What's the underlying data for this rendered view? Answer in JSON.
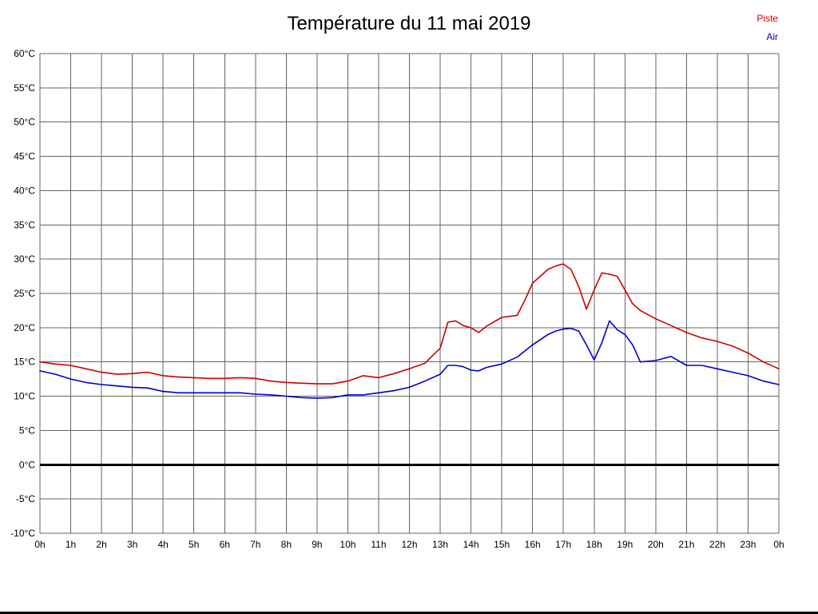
{
  "title": "Température du 11 mai 2019",
  "legend": {
    "piste": "Piste",
    "air": "Air"
  },
  "colors": {
    "piste": "#cc0000",
    "air": "#0000cc",
    "grid": "#666666",
    "zero_line": "#000000",
    "text": "#000000",
    "background": "#ffffff"
  },
  "chart_data": {
    "type": "line",
    "title": "Température du 11 mai 2019",
    "xlabel": "",
    "ylabel": "",
    "xlim": [
      0,
      24
    ],
    "ylim": [
      -10,
      60
    ],
    "y_tick_step": 5,
    "grid": true,
    "legend_position": "top-right",
    "x_tick_labels": [
      "0h",
      "1h",
      "2h",
      "3h",
      "4h",
      "5h",
      "6h",
      "7h",
      "8h",
      "9h",
      "10h",
      "11h",
      "12h",
      "13h",
      "14h",
      "15h",
      "16h",
      "17h",
      "18h",
      "19h",
      "20h",
      "21h",
      "22h",
      "23h",
      "0h"
    ],
    "y_tick_labels": [
      "60°C",
      "55°C",
      "50°C",
      "45°C",
      "40°C",
      "35°C",
      "30°C",
      "25°C",
      "20°C",
      "15°C",
      "10°C",
      "5°C",
      "0°C",
      "-5°C",
      "-10°C"
    ],
    "series": [
      {
        "name": "Piste",
        "color": "#cc0000",
        "x": [
          0,
          0.5,
          1,
          1.5,
          2,
          2.5,
          3,
          3.5,
          4,
          4.5,
          5,
          5.5,
          6,
          6.5,
          7,
          7.5,
          8,
          8.5,
          9,
          9.5,
          10,
          10.5,
          11,
          11.5,
          12,
          12.5,
          13,
          13.25,
          13.5,
          13.75,
          14,
          14.25,
          14.5,
          15,
          15.5,
          15.75,
          16,
          16.25,
          16.5,
          16.75,
          17,
          17.25,
          17.5,
          17.75,
          18,
          18.25,
          18.5,
          18.75,
          19,
          19.25,
          19.5,
          20,
          20.5,
          21,
          21.5,
          22,
          22.5,
          23,
          23.5,
          24
        ],
        "values": [
          15,
          14.7,
          14.5,
          14,
          13.5,
          13.2,
          13.3,
          13.5,
          13,
          12.8,
          12.7,
          12.6,
          12.6,
          12.7,
          12.6,
          12.2,
          12,
          11.9,
          11.8,
          11.8,
          12.2,
          13,
          12.7,
          13.3,
          14,
          14.8,
          17,
          20.8,
          21,
          20.3,
          20,
          19.3,
          20.2,
          21.5,
          21.8,
          24,
          26.5,
          27.5,
          28.5,
          29,
          29.3,
          28.5,
          26,
          22.7,
          25.5,
          28,
          27.8,
          27.5,
          25.5,
          23.5,
          22.5,
          21.3,
          20.3,
          19.3,
          18.5,
          18,
          17.3,
          16.3,
          15,
          14
        ]
      },
      {
        "name": "Air",
        "color": "#0000cc",
        "x": [
          0,
          0.5,
          1,
          1.5,
          2,
          2.5,
          3,
          3.5,
          4,
          4.5,
          5,
          5.5,
          6,
          6.5,
          7,
          7.5,
          8,
          8.5,
          9,
          9.5,
          10,
          10.5,
          11,
          11.5,
          12,
          12.5,
          13,
          13.25,
          13.5,
          13.75,
          14,
          14.25,
          14.5,
          15,
          15.5,
          16,
          16.5,
          16.75,
          17,
          17.25,
          17.5,
          17.75,
          18,
          18.25,
          18.5,
          18.75,
          19,
          19.25,
          19.5,
          20,
          20.25,
          20.5,
          21,
          21.5,
          22,
          22.5,
          23,
          23.5,
          24
        ],
        "values": [
          13.7,
          13.2,
          12.5,
          12,
          11.7,
          11.5,
          11.3,
          11.2,
          10.7,
          10.5,
          10.5,
          10.5,
          10.5,
          10.5,
          10.3,
          10.2,
          10,
          9.8,
          9.7,
          9.8,
          10.2,
          10.2,
          10.5,
          10.8,
          11.3,
          12.2,
          13.2,
          14.5,
          14.5,
          14.3,
          13.8,
          13.7,
          14.2,
          14.7,
          15.7,
          17.5,
          19,
          19.5,
          19.8,
          19.9,
          19.5,
          17.5,
          15.3,
          17.8,
          21,
          19.7,
          19,
          17.5,
          15,
          15.2,
          15.5,
          15.8,
          14.5,
          14.5,
          14,
          13.5,
          13,
          12.2,
          11.7
        ]
      }
    ]
  }
}
